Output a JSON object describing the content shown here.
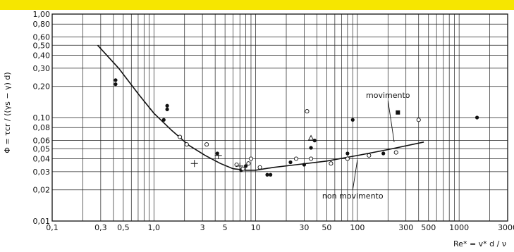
{
  "chart_data": {
    "type": "scatter",
    "title": "",
    "x_scale": "log",
    "y_scale": "log",
    "xlim": [
      0.1,
      3000
    ],
    "ylim": [
      0.01,
      1.0
    ],
    "grid": true,
    "ylabel": "Φ = τcr / ((γs − γ) d)",
    "xlabel": "Re* = v* d / ν",
    "x_ticks": [
      {
        "v": 0.1,
        "label": "0,1"
      },
      {
        "v": 0.3,
        "label": "0,3"
      },
      {
        "v": 0.5,
        "label": "0,5"
      },
      {
        "v": 1,
        "label": "1,0"
      },
      {
        "v": 3,
        "label": "3"
      },
      {
        "v": 5,
        "label": "5"
      },
      {
        "v": 10,
        "label": "10"
      },
      {
        "v": 30,
        "label": "30"
      },
      {
        "v": 50,
        "label": "50"
      },
      {
        "v": 100,
        "label": "100"
      },
      {
        "v": 300,
        "label": "300"
      },
      {
        "v": 500,
        "label": "500"
      },
      {
        "v": 1000,
        "label": "1000"
      },
      {
        "v": 3000,
        "label": "3000"
      }
    ],
    "y_ticks": [
      {
        "v": 1.0,
        "label": "1,00"
      },
      {
        "v": 0.8,
        "label": "0,80"
      },
      {
        "v": 0.6,
        "label": "0,60"
      },
      {
        "v": 0.5,
        "label": "0,50"
      },
      {
        "v": 0.4,
        "label": "0,40"
      },
      {
        "v": 0.3,
        "label": "0,30"
      },
      {
        "v": 0.2,
        "label": "0,20"
      },
      {
        "v": 0.1,
        "label": "0,10"
      },
      {
        "v": 0.08,
        "label": "0,08"
      },
      {
        "v": 0.06,
        "label": "0,06"
      },
      {
        "v": 0.05,
        "label": "0,05"
      },
      {
        "v": 0.04,
        "label": "0,04"
      },
      {
        "v": 0.03,
        "label": "0,03"
      },
      {
        "v": 0.02,
        "label": "0,02"
      },
      {
        "v": 0.01,
        "label": "0,01"
      }
    ],
    "curve": {
      "x": [
        0.28,
        0.45,
        0.7,
        1.0,
        1.5,
        2.2,
        3.2,
        4.5,
        6.0,
        8.0,
        10,
        15,
        25,
        50,
        100,
        200,
        450
      ],
      "y": [
        0.5,
        0.3,
        0.17,
        0.11,
        0.075,
        0.054,
        0.043,
        0.036,
        0.032,
        0.031,
        0.031,
        0.033,
        0.035,
        0.038,
        0.043,
        0.049,
        0.058
      ]
    },
    "points_filled": {
      "x": [
        0.42,
        0.42,
        1.25,
        1.35,
        1.35,
        4.2,
        7.2,
        8.0,
        13,
        14,
        22,
        30,
        35,
        38,
        80,
        90,
        180,
        1500
      ],
      "y": [
        0.23,
        0.21,
        0.095,
        0.13,
        0.12,
        0.045,
        0.031,
        0.034,
        0.028,
        0.028,
        0.037,
        0.035,
        0.051,
        0.06,
        0.045,
        0.095,
        0.045,
        0.1
      ]
    },
    "points_open": {
      "x": [
        1.8,
        2.1,
        3.3,
        6.5,
        7.5,
        8.5,
        9.0,
        11,
        25,
        32,
        35,
        55,
        80,
        130,
        240,
        400
      ],
      "y": [
        0.065,
        0.055,
        0.055,
        0.035,
        0.032,
        0.036,
        0.04,
        0.033,
        0.04,
        0.115,
        0.04,
        0.036,
        0.04,
        0.043,
        0.046,
        0.095
      ]
    },
    "points_triangle": {
      "x": [
        35
      ],
      "y": [
        0.063
      ]
    },
    "points_square": {
      "x": [
        250
      ],
      "y": [
        0.112
      ]
    },
    "points_star": {
      "x": [
        2.5,
        4.3,
        7.0
      ],
      "y": [
        0.036,
        0.043,
        0.034
      ]
    },
    "annotations": [
      {
        "text": "movimento",
        "x": 200,
        "y": 0.155,
        "arrow_to": [
          230,
          0.058
        ]
      },
      {
        "text": "non  movimento",
        "x": 90,
        "y": 0.0165,
        "arrow_to": [
          100,
          0.039
        ]
      }
    ]
  }
}
